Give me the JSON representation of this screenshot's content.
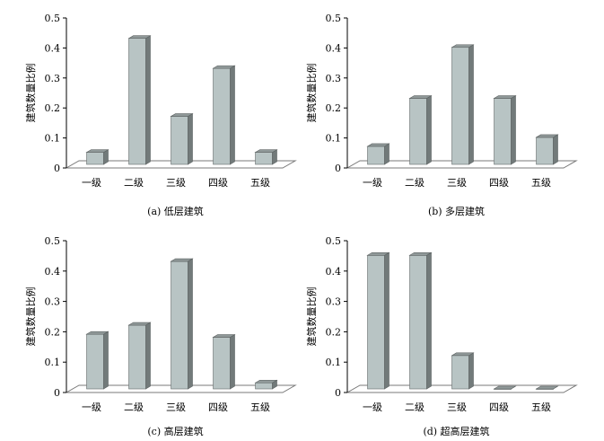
{
  "chart_data": [
    {
      "type": "bar",
      "caption": "(a) 低层建筑",
      "ylabel": "建筑数量比例",
      "categories": [
        "一级",
        "二级",
        "三级",
        "四级",
        "五级"
      ],
      "values": [
        0.04,
        0.42,
        0.16,
        0.32,
        0.04
      ],
      "ylim": [
        0,
        0.5
      ],
      "yticks": [
        "0",
        "0.1",
        "0.2",
        "0.3",
        "0.4",
        "0.5"
      ],
      "grid": false,
      "bar_color": "#b8c4c4"
    },
    {
      "type": "bar",
      "caption": "(b) 多层建筑",
      "ylabel": "建筑数量比例",
      "categories": [
        "一级",
        "二级",
        "三级",
        "四级",
        "五级"
      ],
      "values": [
        0.06,
        0.22,
        0.39,
        0.22,
        0.09
      ],
      "ylim": [
        0,
        0.5
      ],
      "yticks": [
        "0",
        "0.1",
        "0.2",
        "0.3",
        "0.4",
        "0.5"
      ],
      "grid": false,
      "bar_color": "#b8c4c4"
    },
    {
      "type": "bar",
      "caption": "(c) 高层建筑",
      "ylabel": "建筑数量比例",
      "categories": [
        "一级",
        "二级",
        "三级",
        "四级",
        "五级"
      ],
      "values": [
        0.18,
        0.21,
        0.42,
        0.17,
        0.02
      ],
      "ylim": [
        0,
        0.5
      ],
      "yticks": [
        "0",
        "0.1",
        "0.2",
        "0.3",
        "0.4",
        "0.5"
      ],
      "grid": false,
      "bar_color": "#b8c4c4"
    },
    {
      "type": "bar",
      "caption": "(d) 超高层建筑",
      "ylabel": "建筑数量比例",
      "categories": [
        "一级",
        "二级",
        "三级",
        "四级",
        "五级"
      ],
      "values": [
        0.44,
        0.44,
        0.11,
        0.0,
        0.0
      ],
      "ylim": [
        0,
        0.5
      ],
      "yticks": [
        "0",
        "0.1",
        "0.2",
        "0.3",
        "0.4",
        "0.5"
      ],
      "grid": false,
      "bar_color": "#b8c4c4"
    }
  ]
}
